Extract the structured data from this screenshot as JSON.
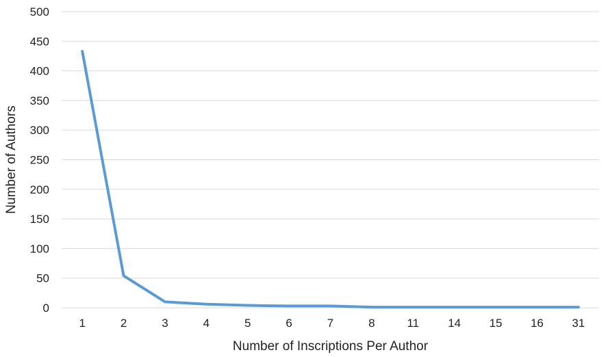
{
  "chart_data": {
    "type": "line",
    "title": "",
    "xlabel": "Number of Inscriptions Per Author",
    "ylabel": "Number of Authors",
    "categories": [
      "1",
      "2",
      "3",
      "4",
      "5",
      "6",
      "7",
      "8",
      "11",
      "14",
      "15",
      "16",
      "31"
    ],
    "series": [
      {
        "values": [
          433,
          54,
          10,
          6,
          4,
          3,
          3,
          1,
          1,
          1,
          1,
          1,
          1
        ],
        "color": "#5b9bd5"
      }
    ],
    "ylim": [
      0,
      500
    ],
    "yticks": [
      "0",
      "50",
      "100",
      "150",
      "200",
      "250",
      "300",
      "350",
      "400",
      "450",
      "500"
    ],
    "grid": true,
    "legend": "none"
  }
}
